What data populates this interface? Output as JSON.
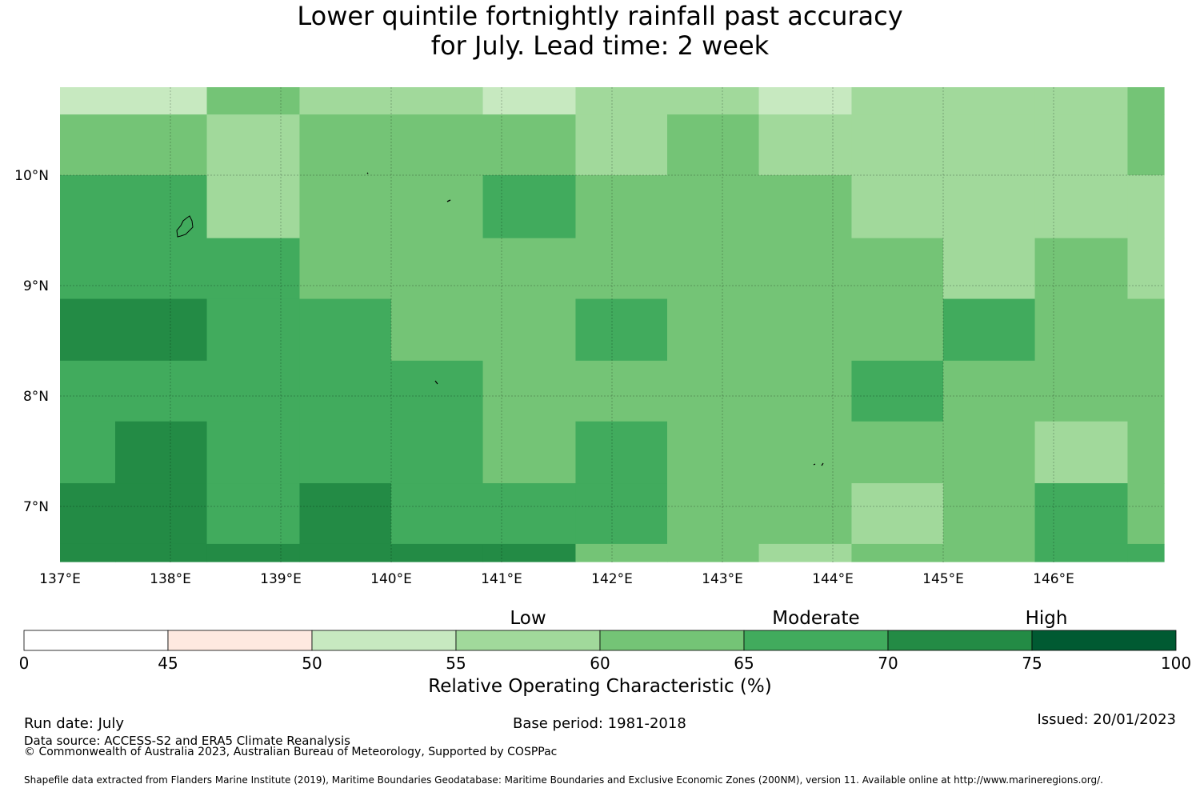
{
  "title": {
    "line1": "Lower quintile fortnightly rainfall past accuracy",
    "line2": "for July. Lead time: 2 week"
  },
  "map": {
    "lon_labels": [
      "137°E",
      "138°E",
      "139°E",
      "140°E",
      "141°E",
      "142°E",
      "143°E",
      "144°E",
      "145°E",
      "146°E"
    ],
    "lat_labels": [
      "10°N",
      "9°N",
      "8°N",
      "7°N"
    ],
    "lon_range": [
      137,
      147
    ],
    "lat_range": [
      6.5,
      10.8
    ],
    "grid_lines": true,
    "cell_columns": [
      {
        "lon": [
          137.0,
          137.5
        ],
        "v": [
          50,
          60,
          65,
          65,
          70,
          65,
          65,
          70,
          70
        ]
      },
      {
        "lon": [
          137.5,
          138.33
        ],
        "v": [
          50,
          60,
          65,
          65,
          70,
          65,
          70,
          70,
          70
        ]
      },
      {
        "lon": [
          138.33,
          139.17
        ],
        "v": [
          60,
          55,
          55,
          65,
          65,
          65,
          65,
          65,
          70
        ]
      },
      {
        "lon": [
          139.17,
          140.0
        ],
        "v": [
          55,
          60,
          60,
          60,
          65,
          65,
          65,
          70,
          70
        ]
      },
      {
        "lon": [
          140.0,
          140.83
        ],
        "v": [
          55,
          60,
          60,
          60,
          60,
          65,
          65,
          65,
          70
        ]
      },
      {
        "lon": [
          140.83,
          141.67
        ],
        "v": [
          50,
          60,
          65,
          60,
          60,
          60,
          60,
          65,
          70
        ]
      },
      {
        "lon": [
          141.67,
          142.5
        ],
        "v": [
          55,
          55,
          60,
          60,
          65,
          60,
          65,
          65,
          60
        ]
      },
      {
        "lon": [
          142.5,
          143.33
        ],
        "v": [
          55,
          60,
          60,
          60,
          60,
          60,
          60,
          60,
          60
        ]
      },
      {
        "lon": [
          143.33,
          144.17
        ],
        "v": [
          50,
          55,
          60,
          60,
          60,
          60,
          60,
          60,
          55
        ]
      },
      {
        "lon": [
          144.17,
          145.0
        ],
        "v": [
          55,
          55,
          55,
          60,
          60,
          65,
          60,
          55,
          60
        ]
      },
      {
        "lon": [
          145.0,
          145.83
        ],
        "v": [
          55,
          55,
          55,
          55,
          65,
          60,
          60,
          60,
          60
        ]
      },
      {
        "lon": [
          145.83,
          146.67
        ],
        "v": [
          55,
          55,
          55,
          60,
          60,
          60,
          55,
          65,
          65
        ]
      },
      {
        "lon": [
          146.67,
          147.0
        ],
        "v": [
          60,
          60,
          55,
          55,
          60,
          60,
          60,
          60,
          65
        ]
      }
    ],
    "cell_lat_edges": [
      10.8,
      10.55,
      10.0,
      9.43,
      8.88,
      8.32,
      7.77,
      7.21,
      6.66,
      6.5
    ]
  },
  "colorbar": {
    "bounds": [
      0,
      45,
      50,
      55,
      60,
      65,
      70,
      75,
      100
    ],
    "colors": [
      "#ffffff",
      "#fee9e0",
      "#c7e9c0",
      "#a1d99b",
      "#74c476",
      "#41ab5d",
      "#238b45",
      "#005a32"
    ],
    "tick_labels": [
      "0",
      "45",
      "50",
      "55",
      "60",
      "65",
      "70",
      "75",
      "100"
    ],
    "categories": [
      {
        "label": "Low",
        "at": 57.5
      },
      {
        "label": "Moderate",
        "at": 67.5
      },
      {
        "label": "High",
        "at": 77.5
      }
    ],
    "label": "Relative Operating Characteristic (%)"
  },
  "footer": {
    "run_date": "Run date: July",
    "base_period": "Base period: 1981-2018",
    "issued": "Issued: 20/01/2023",
    "data_source": "Data source: ACCESS-S2 and ERA5 Climate Reanalysis",
    "copyright": "© Commonwealth of Australia 2023, Australian Bureau of Meteorology, Supported by COSPPac",
    "shapefile": "Shapefile data extracted from Flanders Marine Institute (2019), Maritime Boundaries Geodatabase: Maritime Boundaries and Exclusive Economic Zones (200NM), version 11. Available online at http://www.marineregions.org/."
  }
}
